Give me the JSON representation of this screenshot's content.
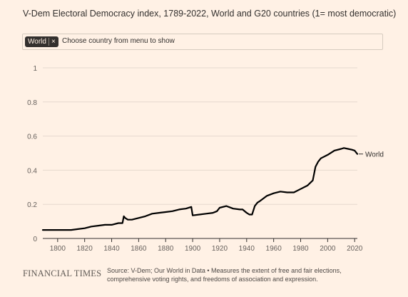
{
  "header": {
    "title": "V-Dem Electoral Democracy index, 1789-2022, World and G20 countries (1= most democratic)"
  },
  "selector": {
    "chip_label": "World",
    "chip_remove_glyph": "×",
    "placeholder": "Choose country from menu to show"
  },
  "footer": {
    "logo_text": "FINANCIAL TIMES",
    "source_text": "Source: V-Dem; Our World in Data • Measures the extent of free and fair elections, comprehensive voting rights, and freedoms of association and expression."
  },
  "colors": {
    "background": "#fff1e5",
    "line": "#000000",
    "grid": "#e6d9ce",
    "axis": "#33302e",
    "muted_text": "#66605c"
  },
  "chart_data": {
    "type": "line",
    "title": "V-Dem Electoral Democracy index, 1789-2022, World and G20 countries (1= most democratic)",
    "xlabel": "",
    "ylabel": "",
    "xlim": [
      1789,
      2022
    ],
    "ylim": [
      0,
      1
    ],
    "x_ticks": [
      1800,
      1820,
      1840,
      1860,
      1880,
      1900,
      1920,
      1940,
      1960,
      1980,
      2000,
      2020
    ],
    "y_ticks": [
      0,
      0.2,
      0.4,
      0.6,
      0.8,
      1
    ],
    "y_tick_labels": [
      "0",
      "0.2",
      "0.4",
      "0.6",
      "0.8",
      "1"
    ],
    "grid": true,
    "series": [
      {
        "name": "World",
        "label_position": "end",
        "x": [
          1789,
          1795,
          1800,
          1805,
          1810,
          1815,
          1820,
          1825,
          1830,
          1835,
          1840,
          1845,
          1848,
          1849,
          1850,
          1852,
          1855,
          1860,
          1865,
          1870,
          1875,
          1880,
          1885,
          1890,
          1895,
          1899,
          1900,
          1905,
          1910,
          1915,
          1918,
          1920,
          1925,
          1930,
          1935,
          1937,
          1940,
          1942,
          1944,
          1946,
          1948,
          1950,
          1955,
          1960,
          1965,
          1970,
          1975,
          1980,
          1985,
          1989,
          1990,
          1991,
          1993,
          1995,
          2000,
          2005,
          2010,
          2012,
          2015,
          2018,
          2020,
          2022
        ],
        "y": [
          0.05,
          0.05,
          0.05,
          0.05,
          0.05,
          0.055,
          0.06,
          0.07,
          0.075,
          0.08,
          0.08,
          0.09,
          0.09,
          0.13,
          0.12,
          0.11,
          0.11,
          0.12,
          0.13,
          0.145,
          0.15,
          0.155,
          0.16,
          0.17,
          0.175,
          0.185,
          0.135,
          0.14,
          0.145,
          0.15,
          0.16,
          0.18,
          0.19,
          0.175,
          0.17,
          0.17,
          0.15,
          0.14,
          0.14,
          0.19,
          0.21,
          0.22,
          0.25,
          0.265,
          0.275,
          0.27,
          0.27,
          0.29,
          0.31,
          0.34,
          0.38,
          0.42,
          0.45,
          0.47,
          0.49,
          0.515,
          0.525,
          0.53,
          0.525,
          0.52,
          0.515,
          0.495
        ]
      }
    ]
  }
}
